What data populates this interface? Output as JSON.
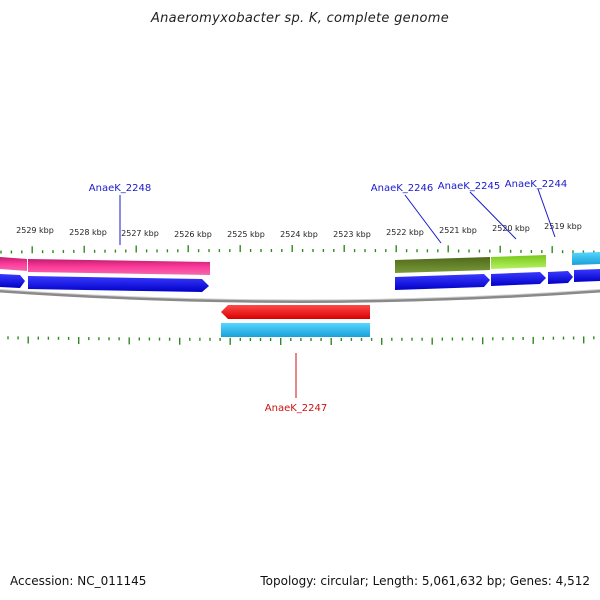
{
  "title": "Anaeromyxobacter sp. K, complete genome",
  "footer": {
    "accession": "Accession: NC_011145",
    "summary": "Topology: circular; Length: 5,061,632 bp; Genes: 4,512"
  },
  "scale_labels": [
    "2529 kbp",
    "2528 kbp",
    "2527 kbp",
    "2526 kbp",
    "2525 kbp",
    "2524 kbp",
    "2523 kbp",
    "2522 kbp",
    "2521 kbp",
    "2520 kbp",
    "2519 kbp"
  ],
  "gene_labels": [
    {
      "text": "AnaeK_2248",
      "color": "#1a1acc"
    },
    {
      "text": "AnaeK_2246",
      "color": "#1a1acc"
    },
    {
      "text": "AnaeK_2245",
      "color": "#1a1acc"
    },
    {
      "text": "AnaeK_2244",
      "color": "#1a1acc"
    },
    {
      "text": "AnaeK_2247",
      "color": "#cc1111"
    }
  ],
  "colors": {
    "backbone": "#8a8a8a",
    "tick": "#2e8b1e",
    "cds": "#0a0ae0",
    "magenta_gene": "#ee2a8a",
    "olive_gene": "#6b8e23",
    "lime_gene": "#9be22a",
    "cyan_gene": "#22b8e8",
    "red_gene": "#ee1111"
  }
}
